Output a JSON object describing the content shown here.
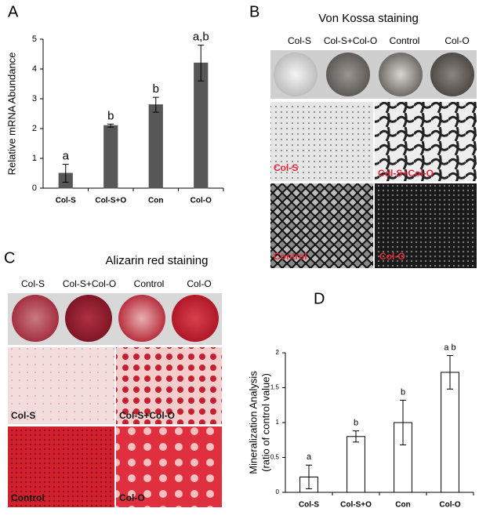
{
  "chart_data": [
    {
      "type": "bar",
      "panel_label": "A",
      "y_label": "Relative mRNA Abundance",
      "categories": [
        "Col-S",
        "Col-S+O",
        "Con",
        "Col-O"
      ],
      "values": [
        0.5,
        2.1,
        2.8,
        4.2
      ],
      "errors": [
        0.3,
        0.05,
        0.25,
        0.6
      ],
      "annotations": [
        "a",
        "b",
        "b",
        "a,b"
      ],
      "color": "#575757",
      "edgecolor": "#575757",
      "ylim": [
        0,
        5
      ],
      "yticks": [
        0,
        1,
        2,
        3,
        4,
        5
      ],
      "grid": false
    },
    {
      "type": "bar",
      "panel_label": "D",
      "y_label": [
        "Mineralization Analysis",
        "(ratio of control value)"
      ],
      "categories": [
        "Col-S",
        "Col-S+O",
        "Con",
        "Col-O"
      ],
      "values": [
        0.22,
        0.8,
        1.0,
        1.72
      ],
      "errors": [
        0.17,
        0.08,
        0.32,
        0.24
      ],
      "annotations": [
        "a",
        "b",
        "b",
        "a b"
      ],
      "color": "#ffffff",
      "edgecolor": "#000000",
      "ylim": [
        0,
        2
      ],
      "yticks": [
        0,
        0.5,
        1,
        1.5,
        2
      ],
      "grid": false
    }
  ],
  "panels": {
    "B": {
      "label": "B",
      "title": "Von Kossa staining",
      "wells": [
        "Col-S",
        "Col-S+Col-O",
        "Control",
        "Col-O"
      ],
      "tiles": [
        "Col-S",
        "Col-S+Col-O",
        "Control",
        "Col-O"
      ]
    },
    "C": {
      "label": "C",
      "title": "Alizarin red staining",
      "wells": [
        "Col-S",
        "Col-S+Col-O",
        "Control",
        "Col-O"
      ],
      "tiles": [
        "Col-S",
        "Col-S+Col-O",
        "Control",
        "Col-O"
      ]
    }
  }
}
